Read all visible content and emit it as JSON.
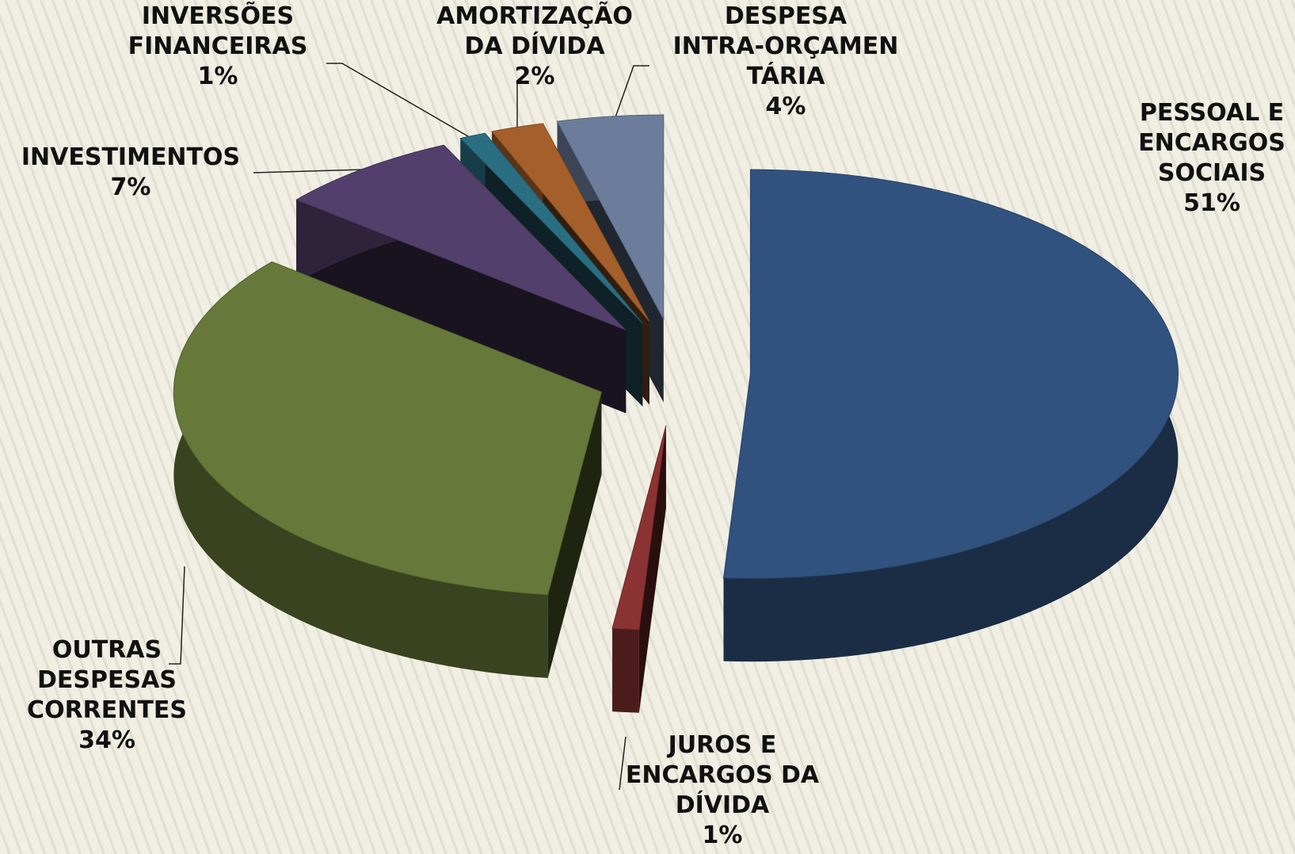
{
  "chart_data": {
    "type": "pie",
    "categories": [
      "PESSOAL E\nENCARGOS\nSOCIAIS",
      "JUROS E\nENCARGOS DA\nDÍVIDA",
      "OUTRAS\nDESPESAS\nCORRENTES",
      "INVESTIMENTOS",
      "INVERSÕES\nFINANCEIRAS",
      "AMORTIZAÇÃO\nDA DÍVIDA",
      "DESPESA\nINTRA-ORÇAMEN\nTÁRIA"
    ],
    "values": [
      51,
      1,
      34,
      7,
      1,
      2,
      4
    ],
    "value_labels": [
      "51%",
      "1%",
      "34%",
      "7%",
      "1%",
      "2%",
      "4%"
    ],
    "colors": [
      "#31527e",
      "#8b3232",
      "#67793a",
      "#533f6b",
      "#2a6e82",
      "#a45f2a",
      "#6b7d9b"
    ]
  }
}
